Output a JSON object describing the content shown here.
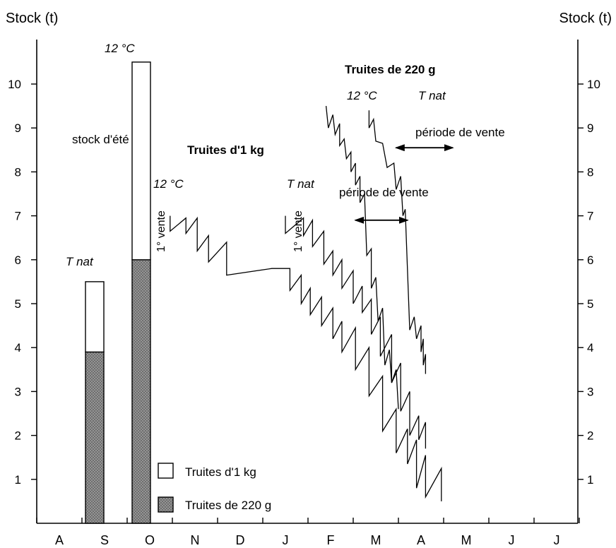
{
  "chart_data": {
    "type": "line",
    "left_axis_title": "Stock (t)",
    "right_axis_title": "Stock (t)",
    "y_ticks": [
      "1",
      "2",
      "3",
      "4",
      "5",
      "6",
      "7",
      "8",
      "9",
      "10"
    ],
    "ylim": [
      0,
      11
    ],
    "months": [
      "A",
      "S",
      "O",
      "N",
      "D",
      "J",
      "F",
      "M",
      "A",
      "M",
      "J",
      "J"
    ],
    "bars": [
      {
        "label_top": "T nat",
        "month_index": 1,
        "total": 5.5,
        "trout_220g": 3.9,
        "trout_1kg": 1.6
      },
      {
        "label_top": "12 °C",
        "month_index": 1.5,
        "total": 10.5,
        "trout_220g": 6.0,
        "trout_1kg": 4.5,
        "inner_label": "stock d'été"
      }
    ],
    "legend": [
      {
        "key": "trout_1kg",
        "label": "Truites d'1 kg",
        "fill": "#ffffff"
      },
      {
        "key": "trout_220g",
        "label": "Truites de 220 g",
        "fill": "#888888"
      }
    ],
    "groups": [
      {
        "title": "Truites d'1 kg",
        "first_sale_label": "1° vente",
        "series": [
          {
            "label": "12 °C",
            "points": [
              [
                2.95,
                7.0
              ],
              [
                2.95,
                6.65
              ],
              [
                3.3,
                6.95
              ],
              [
                3.3,
                6.6
              ],
              [
                3.55,
                6.95
              ],
              [
                3.55,
                6.2
              ],
              [
                3.8,
                6.55
              ],
              [
                3.8,
                5.95
              ],
              [
                4.2,
                6.4
              ],
              [
                4.2,
                5.65
              ],
              [
                5.2,
                5.8
              ],
              [
                5.6,
                5.8
              ],
              [
                5.6,
                5.3
              ],
              [
                5.85,
                5.65
              ],
              [
                5.85,
                5.0
              ],
              [
                6.05,
                5.35
              ],
              [
                6.05,
                4.75
              ],
              [
                6.3,
                5.15
              ],
              [
                6.3,
                4.5
              ],
              [
                6.55,
                4.9
              ],
              [
                6.55,
                4.2
              ],
              [
                6.75,
                4.6
              ],
              [
                6.75,
                3.9
              ],
              [
                7.05,
                4.45
              ],
              [
                7.05,
                3.5
              ],
              [
                7.35,
                4.0
              ],
              [
                7.35,
                2.9
              ],
              [
                7.65,
                3.35
              ],
              [
                7.65,
                2.1
              ],
              [
                7.95,
                2.6
              ],
              [
                7.95,
                1.6
              ],
              [
                8.2,
                2.15
              ],
              [
                8.2,
                1.35
              ],
              [
                8.4,
                1.9
              ],
              [
                8.4,
                0.8
              ],
              [
                8.6,
                1.55
              ],
              [
                8.6,
                0.6
              ],
              [
                8.95,
                1.25
              ],
              [
                8.95,
                0.5
              ]
            ]
          },
          {
            "label": "T nat",
            "points": [
              [
                5.5,
                7.0
              ],
              [
                5.5,
                6.6
              ],
              [
                5.9,
                6.95
              ],
              [
                5.9,
                6.55
              ],
              [
                6.1,
                6.9
              ],
              [
                6.1,
                6.3
              ],
              [
                6.35,
                6.65
              ],
              [
                6.35,
                5.9
              ],
              [
                6.55,
                6.2
              ],
              [
                6.55,
                5.65
              ],
              [
                6.75,
                6.0
              ],
              [
                6.75,
                5.35
              ],
              [
                7.0,
                5.75
              ],
              [
                7.0,
                5.0
              ],
              [
                7.2,
                5.4
              ],
              [
                7.2,
                4.8
              ],
              [
                7.4,
                5.1
              ],
              [
                7.4,
                4.3
              ],
              [
                7.6,
                4.7
              ],
              [
                7.6,
                3.8
              ],
              [
                7.85,
                4.3
              ],
              [
                7.85,
                3.2
              ],
              [
                8.05,
                3.65
              ],
              [
                8.05,
                2.55
              ],
              [
                8.25,
                3.0
              ],
              [
                8.25,
                2.0
              ],
              [
                8.45,
                2.45
              ],
              [
                8.45,
                1.9
              ],
              [
                8.6,
                2.3
              ],
              [
                8.6,
                1.7
              ]
            ]
          }
        ]
      },
      {
        "title": "Truites de 220 g",
        "series": [
          {
            "label": "12 °C",
            "points": [
              [
                6.4,
                9.5
              ],
              [
                6.45,
                9.0
              ],
              [
                6.55,
                9.3
              ],
              [
                6.6,
                8.85
              ],
              [
                6.7,
                9.1
              ],
              [
                6.7,
                8.6
              ],
              [
                6.8,
                8.75
              ],
              [
                6.85,
                8.3
              ],
              [
                6.95,
                8.45
              ],
              [
                6.95,
                8.0
              ],
              [
                7.05,
                8.2
              ],
              [
                7.05,
                7.7
              ],
              [
                7.15,
                7.9
              ],
              [
                7.15,
                7.3
              ],
              [
                7.25,
                7.5
              ],
              [
                7.3,
                6.1
              ],
              [
                7.4,
                6.25
              ],
              [
                7.4,
                5.35
              ],
              [
                7.5,
                5.6
              ],
              [
                7.55,
                4.6
              ],
              [
                7.65,
                4.9
              ],
              [
                7.7,
                3.6
              ],
              [
                7.8,
                3.95
              ],
              [
                7.85,
                3.2
              ],
              [
                7.95,
                3.5
              ],
              [
                8.0,
                2.6
              ]
            ]
          },
          {
            "label": "T nat",
            "points": [
              [
                7.35,
                9.4
              ],
              [
                7.35,
                9.0
              ],
              [
                7.45,
                9.2
              ],
              [
                7.5,
                8.7
              ],
              [
                7.65,
                8.65
              ],
              [
                7.75,
                8.1
              ],
              [
                7.9,
                8.2
              ],
              [
                7.95,
                7.6
              ],
              [
                8.05,
                7.9
              ],
              [
                8.1,
                7.0
              ],
              [
                8.15,
                7.15
              ],
              [
                8.25,
                4.4
              ],
              [
                8.35,
                4.7
              ],
              [
                8.4,
                4.2
              ],
              [
                8.5,
                4.5
              ],
              [
                8.5,
                3.9
              ],
              [
                8.55,
                4.2
              ],
              [
                8.55,
                3.6
              ],
              [
                8.6,
                3.85
              ],
              [
                8.6,
                3.4
              ]
            ]
          }
        ]
      }
    ],
    "annotations": [
      {
        "text": "période de vente",
        "group": "Truites d'1 kg",
        "arrow_from": 7.05,
        "arrow_to": 8.2,
        "y": 6.9
      },
      {
        "text": "période de vente",
        "group": "Truites de 220 g",
        "arrow_from": 7.95,
        "arrow_to": 9.2,
        "y": 8.55
      }
    ]
  }
}
